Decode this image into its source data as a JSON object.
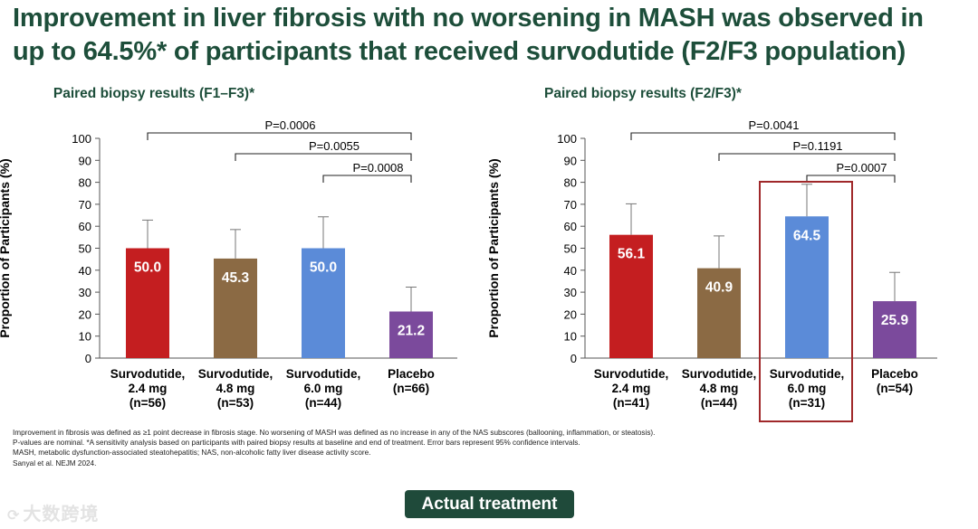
{
  "title": {
    "line1": "Improvement in liver fibrosis with no worsening in MASH was observed in",
    "line2": "up to 64.5%* of participants that received survodutide (F2/F3 population)"
  },
  "chart_data": [
    {
      "type": "bar",
      "title": "Paired biopsy results (F1–F3)*",
      "ylabel": "Proportion of Participants (%)",
      "xlabel": "",
      "ylim": [
        0,
        100
      ],
      "yticks": [
        "0",
        "10",
        "20",
        "30",
        "40",
        "50",
        "60",
        "70",
        "80",
        "90",
        "100"
      ],
      "categories": [
        [
          "Survodutide,",
          "2.4 mg",
          "(n=56)"
        ],
        [
          "Survodutide,",
          "4.8 mg",
          "(n=53)"
        ],
        [
          "Survodutide,",
          "6.0 mg",
          "(n=44)"
        ],
        [
          "Placebo",
          "(n=66)"
        ]
      ],
      "values": [
        50.0,
        45.3,
        50.0,
        21.2
      ],
      "value_labels": [
        "50.0",
        "45.3",
        "50.0",
        "21.2"
      ],
      "error_upper": [
        62.8,
        58.5,
        64.3,
        32.3
      ],
      "colors": [
        "#c41e20",
        "#8b6a44",
        "#5b8bd8",
        "#7b4a9c"
      ],
      "comparisons": [
        {
          "label": "P=0.0006",
          "from": 0,
          "to": 3
        },
        {
          "label": "P=0.0055",
          "from": 1,
          "to": 3
        },
        {
          "label": "P=0.0008",
          "from": 2,
          "to": 3
        }
      ],
      "highlight": null
    },
    {
      "type": "bar",
      "title": "Paired biopsy results (F2/F3)*",
      "ylabel": "Proportion of Participants (%)",
      "xlabel": "",
      "ylim": [
        0,
        100
      ],
      "yticks": [
        "0",
        "10",
        "20",
        "30",
        "40",
        "50",
        "60",
        "70",
        "80",
        "90",
        "100"
      ],
      "categories": [
        [
          "Survodutide,",
          "2.4 mg",
          "(n=41)"
        ],
        [
          "Survodutide,",
          "4.8 mg",
          "(n=44)"
        ],
        [
          "Survodutide,",
          "6.0 mg",
          "(n=31)"
        ],
        [
          "Placebo",
          "(n=54)"
        ]
      ],
      "values": [
        56.1,
        40.9,
        64.5,
        25.9
      ],
      "value_labels": [
        "56.1",
        "40.9",
        "64.5",
        "25.9"
      ],
      "error_upper": [
        70.2,
        55.6,
        79.1,
        39.0
      ],
      "colors": [
        "#c41e20",
        "#8b6a44",
        "#5b8bd8",
        "#7b4a9c"
      ],
      "comparisons": [
        {
          "label": "P=0.0041",
          "from": 0,
          "to": 3
        },
        {
          "label": "P=0.1191",
          "from": 1,
          "to": 3
        },
        {
          "label": "P=0.0007",
          "from": 2,
          "to": 3
        }
      ],
      "highlight": 2
    }
  ],
  "footnotes": [
    "Improvement in fibrosis was defined as ≥1 point decrease in fibrosis stage. No worsening of MASH was defined as no increase in any of the NAS subscores (ballooning, inflammation, or steatosis).",
    "P-values are nominal. *A sensitivity analysis based on participants with paired biopsy results at baseline and end of treatment. Error bars represent 95% confidence intervals.",
    "MASH, metabolic dysfunction-associated steatohepatitis; NAS, non-alcoholic fatty liver disease activity score.",
    "Sanyal et al. NEJM 2024."
  ],
  "button": {
    "label": "Actual treatment"
  },
  "watermark": {
    "icon": "logo-icon",
    "text": "大数跨境"
  },
  "colors": {
    "title": "#1d4e3a",
    "button_bg": "#1f4a3a",
    "highlight_box": "#a0282a"
  }
}
